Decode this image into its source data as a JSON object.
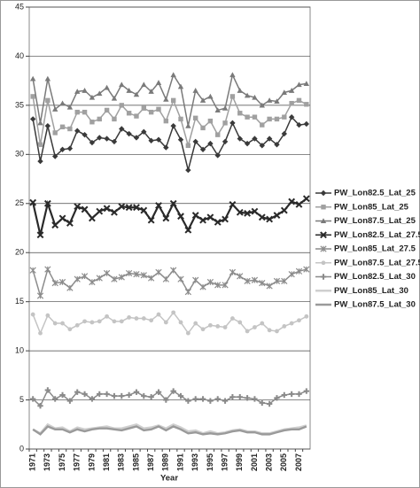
{
  "chart_data": {
    "type": "line",
    "x_label": "Year",
    "categories": [
      "1971",
      null,
      "1973",
      null,
      "1975",
      null,
      "1977",
      null,
      "1979",
      null,
      "1981",
      null,
      "1983",
      null,
      "1985",
      null,
      "1987",
      null,
      "1989",
      null,
      "1991",
      null,
      "1993",
      null,
      "1995",
      null,
      "1997",
      null,
      "1999",
      null,
      "2001",
      null,
      "2003",
      null,
      "2005",
      null,
      "2007",
      null
    ],
    "ylim": [
      0,
      45
    ],
    "yticks": [
      0,
      5,
      10,
      15,
      20,
      25,
      30,
      35,
      40,
      45
    ],
    "grid": true,
    "legend": "right",
    "series": [
      {
        "name": "PW_Lon82.5_Lat_25",
        "color": "#3a3a3a",
        "marker": "diamond",
        "values": [
          33.6,
          29.3,
          32.9,
          29.8,
          30.5,
          30.6,
          32.4,
          32.0,
          31.2,
          31.7,
          31.6,
          31.3,
          32.6,
          32.1,
          31.7,
          32.3,
          31.4,
          31.5,
          30.7,
          32.9,
          31.5,
          28.4,
          31.3,
          30.5,
          31.1,
          29.9,
          31.3,
          33.2,
          31.6,
          31.1,
          31.6,
          30.9,
          31.6,
          31.0,
          32.1,
          33.8,
          33.0,
          33.1
        ]
      },
      {
        "name": "PW_Lon85_Lat_25",
        "color": "#a0a0a0",
        "marker": "square",
        "values": [
          35.9,
          31.0,
          35.5,
          32.2,
          32.8,
          32.6,
          34.3,
          34.3,
          33.3,
          33.6,
          34.5,
          33.6,
          35.0,
          34.2,
          33.9,
          34.7,
          34.3,
          34.6,
          33.4,
          35.5,
          33.6,
          30.9,
          33.7,
          32.7,
          33.4,
          32.0,
          33.2,
          35.9,
          34.2,
          33.8,
          33.8,
          33.0,
          33.6,
          33.6,
          33.8,
          35.2,
          35.5,
          35.1
        ]
      },
      {
        "name": "PW_Lon87.5_Lat_25",
        "color": "#7a7a7a",
        "marker": "triangle",
        "values": [
          37.7,
          33.2,
          37.7,
          34.6,
          35.2,
          34.8,
          36.4,
          36.5,
          35.8,
          36.2,
          36.8,
          35.7,
          37.1,
          36.5,
          36.1,
          37.1,
          36.4,
          37.3,
          35.6,
          38.1,
          36.9,
          32.9,
          36.5,
          35.5,
          35.9,
          34.5,
          34.7,
          38.1,
          36.5,
          36.0,
          35.8,
          35.0,
          35.5,
          35.4,
          36.3,
          36.5,
          37.1,
          37.2
        ]
      },
      {
        "name": "PW_Lon82.5_Lat_27.5",
        "color": "#2a2a2a",
        "marker": "x",
        "values": [
          25.1,
          21.8,
          25.0,
          22.8,
          23.5,
          23.0,
          24.7,
          24.4,
          23.5,
          24.2,
          24.5,
          24.1,
          24.7,
          24.6,
          24.6,
          24.3,
          23.3,
          24.8,
          23.5,
          25.0,
          23.7,
          22.3,
          23.8,
          23.3,
          23.6,
          23.1,
          23.4,
          24.9,
          24.1,
          24.0,
          24.2,
          23.6,
          23.4,
          23.8,
          24.3,
          25.2,
          24.9,
          25.5
        ]
      },
      {
        "name": "PW_Lon85_Lat_27.5",
        "color": "#8c8c8c",
        "marker": "star",
        "values": [
          18.2,
          15.6,
          18.3,
          16.9,
          17.0,
          16.4,
          17.3,
          17.6,
          17.0,
          17.4,
          17.9,
          17.3,
          17.5,
          17.9,
          17.8,
          17.7,
          17.4,
          18.0,
          17.3,
          18.2,
          17.3,
          16.0,
          17.2,
          16.5,
          17.0,
          16.7,
          16.7,
          18.0,
          17.6,
          17.1,
          17.2,
          16.9,
          16.6,
          17.1,
          17.1,
          17.8,
          18.1,
          18.3
        ]
      },
      {
        "name": "PW_Lon87.5_Lat_27.5",
        "color": "#c4c4c4",
        "marker": "circle",
        "values": [
          13.7,
          11.8,
          13.6,
          12.8,
          12.8,
          12.2,
          12.6,
          13.0,
          12.9,
          13.0,
          13.5,
          13.0,
          13.0,
          13.4,
          13.3,
          13.3,
          13.1,
          13.7,
          12.9,
          13.9,
          12.9,
          11.8,
          12.8,
          12.2,
          12.6,
          12.5,
          12.4,
          13.3,
          12.9,
          12.0,
          12.4,
          12.8,
          12.1,
          12.0,
          12.5,
          12.8,
          13.1,
          13.5
        ]
      },
      {
        "name": "PW_Lon82.5_Lat_30",
        "color": "#8a8a8a",
        "marker": "plus",
        "values": [
          5.1,
          4.4,
          6.0,
          5.1,
          5.5,
          4.9,
          5.8,
          5.6,
          5.1,
          5.6,
          5.6,
          5.4,
          5.4,
          5.5,
          5.8,
          5.4,
          5.3,
          5.8,
          5.0,
          5.9,
          5.4,
          4.9,
          5.1,
          5.1,
          4.9,
          5.1,
          4.9,
          5.3,
          5.3,
          5.2,
          5.1,
          4.7,
          4.6,
          5.2,
          5.5,
          5.6,
          5.6,
          5.9
        ]
      },
      {
        "name": "PW_Lon85_Lat_30",
        "color": "#cfcfcf",
        "marker": "none",
        "values": [
          2.0,
          1.6,
          2.5,
          2.1,
          2.2,
          1.8,
          2.2,
          2.0,
          2.1,
          2.2,
          2.3,
          2.1,
          2.1,
          2.3,
          2.5,
          2.1,
          2.2,
          2.4,
          2.1,
          2.5,
          2.2,
          1.8,
          1.9,
          1.6,
          1.8,
          1.6,
          1.7,
          1.9,
          2.0,
          1.8,
          1.8,
          1.6,
          1.6,
          1.8,
          2.0,
          2.1,
          2.2,
          2.4
        ]
      },
      {
        "name": "PW_Lon87.5_Lat_30",
        "color": "#9a9a9a",
        "marker": "none",
        "values": [
          2.0,
          1.5,
          2.3,
          2.0,
          2.0,
          1.7,
          2.0,
          1.8,
          2.0,
          2.1,
          2.1,
          2.0,
          1.9,
          2.1,
          2.3,
          1.9,
          2.0,
          2.3,
          1.9,
          2.3,
          2.0,
          1.6,
          1.7,
          1.5,
          1.6,
          1.5,
          1.6,
          1.8,
          1.9,
          1.7,
          1.7,
          1.5,
          1.5,
          1.7,
          1.9,
          2.0,
          2.0,
          2.3
        ]
      }
    ]
  }
}
